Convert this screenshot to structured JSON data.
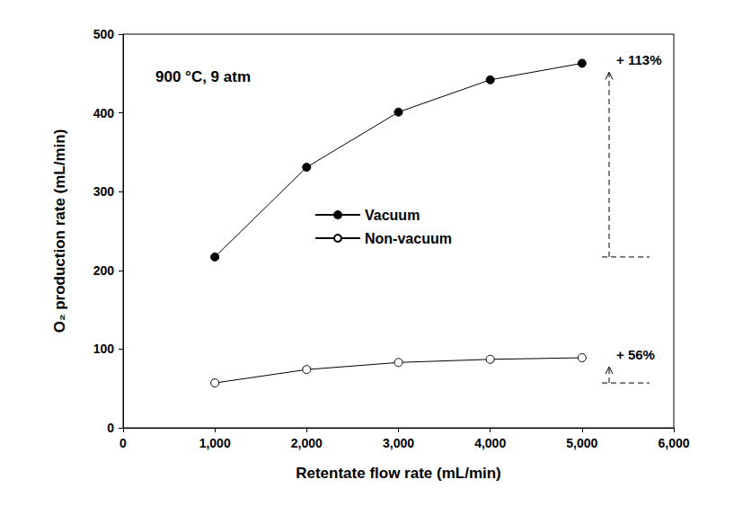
{
  "chart_data": {
    "type": "line",
    "title": "900 °C, 9 atm",
    "x_label": "Retentate flow rate (mL/min)",
    "y_label": "O₂ production rate (mL/min)",
    "x": [
      1000,
      2000,
      3000,
      4000,
      5000
    ],
    "series": [
      {
        "name": "Vacuum",
        "color": "#000000",
        "marker": "circle",
        "values": [
          217,
          331,
          401,
          442,
          463
        ]
      },
      {
        "name": "Non-vacuum",
        "color": "#000000",
        "marker": "open_circle",
        "values": [
          57,
          74,
          83,
          87,
          89
        ]
      }
    ],
    "annotations": [
      "+ 113%",
      "+ 56%"
    ],
    "xlim": [
      0,
      6000
    ],
    "xticks": [
      0,
      1000,
      2000,
      3000,
      4000,
      5000,
      6000
    ],
    "ylim": [
      0,
      500
    ],
    "yticks": [
      0,
      100,
      200,
      300,
      400,
      500
    ],
    "grid": false,
    "legend": "center"
  }
}
